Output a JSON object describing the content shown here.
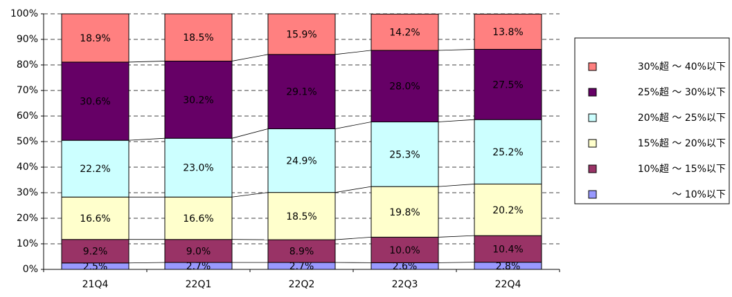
{
  "chart_data": {
    "type": "stacked_bar_100",
    "categories": [
      "21Q4",
      "22Q1",
      "22Q2",
      "22Q3",
      "22Q4"
    ],
    "ylim": [
      0,
      100
    ],
    "yticks": [
      {
        "value": 0,
        "label": "0%"
      },
      {
        "value": 10,
        "label": "10%"
      },
      {
        "value": 20,
        "label": "20%"
      },
      {
        "value": 30,
        "label": "30%"
      },
      {
        "value": 40,
        "label": "40%"
      },
      {
        "value": 50,
        "label": "50%"
      },
      {
        "value": 60,
        "label": "60%"
      },
      {
        "value": 70,
        "label": "70%"
      },
      {
        "value": 80,
        "label": "80%"
      },
      {
        "value": 90,
        "label": "90%"
      },
      {
        "value": 100,
        "label": "100%"
      }
    ],
    "grid": true,
    "legend": "right",
    "series": [
      {
        "name": "～ 10%以下",
        "color": "#9999ff",
        "values": [
          2.5,
          2.7,
          2.7,
          2.6,
          2.8
        ],
        "value_labels": [
          "2.5%",
          "2.7%",
          "2.7%",
          "2.6%",
          "2.8%"
        ]
      },
      {
        "name": "10%超 ～ 15%以下",
        "color": "#993366",
        "values": [
          9.2,
          9.0,
          8.9,
          10.0,
          10.4
        ],
        "value_labels": [
          "9.2%",
          "9.0%",
          "8.9%",
          "10.0%",
          "10.4%"
        ]
      },
      {
        "name": "15%超 ～ 20%以下",
        "color": "#ffffcc",
        "values": [
          16.6,
          16.6,
          18.5,
          19.8,
          20.2
        ],
        "value_labels": [
          "16.6%",
          "16.6%",
          "18.5%",
          "19.8%",
          "20.2%"
        ]
      },
      {
        "name": "20%超 ～ 25%以下",
        "color": "#ccffff",
        "values": [
          22.2,
          23.0,
          24.9,
          25.3,
          25.2
        ],
        "value_labels": [
          "22.2%",
          "23.0%",
          "24.9%",
          "25.3%",
          "25.2%"
        ]
      },
      {
        "name": "25%超 ～ 30%以下",
        "color": "#660066",
        "values": [
          30.6,
          30.2,
          29.1,
          28.0,
          27.5
        ],
        "value_labels": [
          "30.6%",
          "30.2%",
          "29.1%",
          "28.0%",
          "27.5%"
        ]
      },
      {
        "name": "30%超 ～ 40%以下",
        "color": "#ff8080",
        "values": [
          18.9,
          18.5,
          15.9,
          14.2,
          13.8
        ],
        "value_labels": [
          "18.9%",
          "18.5%",
          "15.9%",
          "14.2%",
          "13.8%"
        ]
      }
    ]
  }
}
